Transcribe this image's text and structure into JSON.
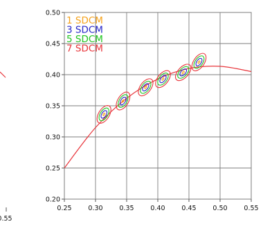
{
  "chart_data": [
    {
      "type": "line",
      "title": "",
      "xlabel": "",
      "ylabel": "",
      "partial": true,
      "x_tick_labels": [
        "0.55"
      ],
      "line_color": "#e8353b"
    },
    {
      "type": "scatter",
      "title": "",
      "xlabel": "",
      "ylabel": "",
      "xlim": [
        0.25,
        0.55
      ],
      "ylim": [
        0.2,
        0.5
      ],
      "grid": true,
      "legend_position": "top-left",
      "x_ticks": [
        0.25,
        0.3,
        0.35,
        0.4,
        0.45,
        0.5,
        0.55
      ],
      "y_ticks": [
        0.2,
        0.25,
        0.3,
        0.35,
        0.4,
        0.45,
        0.5
      ],
      "x_tick_labels": [
        "0.25",
        "0.30",
        "0.35",
        "0.40",
        "0.45",
        "0.50",
        "0.55"
      ],
      "y_tick_labels": [
        "0.20",
        "0.25",
        "0.30",
        "0.35",
        "0.40",
        "0.45",
        "0.50"
      ],
      "series": [
        {
          "name": "1 SDCM",
          "color": "#f5a21b",
          "scale": 1
        },
        {
          "name": "3 SDCM",
          "color": "#2727c8",
          "scale": 3
        },
        {
          "name": "5 SDCM",
          "color": "#1fc41f",
          "scale": 5
        },
        {
          "name": "7 SDCM",
          "color": "#e8353b",
          "scale": 7
        }
      ],
      "ellipse_centers": [
        {
          "x": 0.3136,
          "y": 0.3362,
          "rotation_deg": 58
        },
        {
          "x": 0.3442,
          "y": 0.3577,
          "rotation_deg": 59
        },
        {
          "x": 0.3805,
          "y": 0.3797,
          "rotation_deg": 53
        },
        {
          "x": 0.4083,
          "y": 0.3929,
          "rotation_deg": 52
        },
        {
          "x": 0.4408,
          "y": 0.4036,
          "rotation_deg": 48
        },
        {
          "x": 0.4661,
          "y": 0.4202,
          "rotation_deg": 56
        }
      ],
      "locus": {
        "color": "#e8353b",
        "points": [
          [
            0.25,
            0.25
          ],
          [
            0.3,
            0.315
          ],
          [
            0.35,
            0.362
          ],
          [
            0.4,
            0.393
          ],
          [
            0.45,
            0.41
          ],
          [
            0.5,
            0.4135
          ],
          [
            0.55,
            0.405
          ]
        ]
      }
    }
  ]
}
